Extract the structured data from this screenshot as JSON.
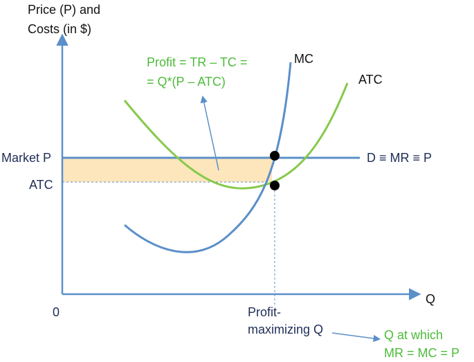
{
  "axes": {
    "y_label": [
      "Price (P) and",
      "Costs (in $)"
    ],
    "x_label": "Q",
    "origin": "0"
  },
  "curves": {
    "mc": "MC",
    "atc": "ATC",
    "demand": "D ≡ MR ≡ P"
  },
  "y_labels": {
    "market_price": "Market P",
    "atc": "ATC"
  },
  "x_labels": {
    "quantity": [
      "Profit-",
      "maximizing Q"
    ]
  },
  "annotations": {
    "profit": [
      "Profit = TR – TC =",
      "= Q*(P – ATC)"
    ],
    "condition": [
      "Q at which",
      "MR = MC = P"
    ]
  }
}
